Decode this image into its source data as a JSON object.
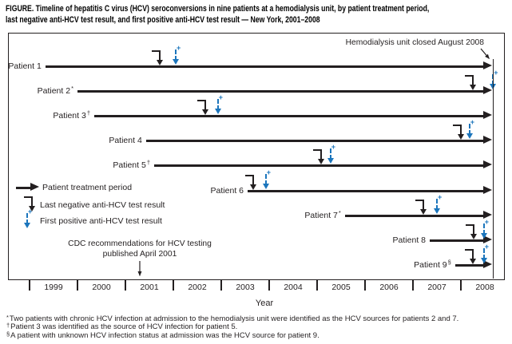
{
  "figure": {
    "title_line1": "FIGURE. Timeline of hepatitis C virus (HCV) seroconversions in nine patients at a hemodialysis unit, by patient treatment period,",
    "title_line2": "last negative anti-HCV test result, and first positive anti-HCV test result — New York, 2001–2008"
  },
  "colors": {
    "ink": "#231f20",
    "positive_blue": "#1b75bc"
  },
  "icons": {
    "plus": "+"
  },
  "legend": {
    "treatment": "Patient treatment period",
    "last_negative": "Last negative anti-HCV test result",
    "first_positive": "First positive anti-HCV test result"
  },
  "annotations": {
    "closure": "Hemodialysis unit closed August 2008",
    "cdc_line1": "CDC recommendations for HCV testing",
    "cdc_line2": "published April 2001"
  },
  "axis": {
    "label": "Year"
  },
  "footnotes": [
    {
      "symbol": "*",
      "text": "Two patients with chronic HCV infection at admission to the hemodialysis unit were identified as the HCV sources for patients 2 and 7."
    },
    {
      "symbol": "†",
      "text": "Patient 3 was identified as the source of HCV infection for patient 5."
    },
    {
      "symbol": "§",
      "text": "A patient with unknown HCV infection status at admission was the HCV source for patient 9."
    }
  ],
  "chart_data": {
    "type": "timeline",
    "title": "Timeline of HCV seroconversions in nine patients at a hemodialysis unit — New York, 2001–2008",
    "xlabel": "Year",
    "axis_years": [
      "1999",
      "2000",
      "2001",
      "2002",
      "2003",
      "2004",
      "2005",
      "2006",
      "2007",
      "2008"
    ],
    "x_domain": [
      1998.55,
      2008.93
    ],
    "unit_closed": {
      "label": "Hemodialysis unit closed August 2008",
      "year": 2008.63
    },
    "cdc_recommendation": {
      "label": "CDC recommendations for HCV testing published April 2001",
      "year": 2001.3
    },
    "patients": [
      {
        "label": "Patient 1",
        "sup": "",
        "treatment_start": 1999.33,
        "treatment_end": 2008.63,
        "last_negative": 2001.72,
        "first_positive": 2002.05
      },
      {
        "label": "Patient 2",
        "sup": "*",
        "treatment_start": 2000.0,
        "treatment_end": 2008.63,
        "last_negative": 2008.25,
        "first_positive": 2008.67
      },
      {
        "label": "Patient 3",
        "sup": "†",
        "treatment_start": 2000.35,
        "treatment_end": 2008.63,
        "last_negative": 2002.67,
        "first_positive": 2002.93
      },
      {
        "label": "Patient 4",
        "sup": "",
        "treatment_start": 2001.43,
        "treatment_end": 2008.63,
        "last_negative": 2008.0,
        "first_positive": 2008.18
      },
      {
        "label": "Patient 5",
        "sup": "†",
        "treatment_start": 2001.6,
        "treatment_end": 2008.63,
        "last_negative": 2005.08,
        "first_positive": 2005.28
      },
      {
        "label": "Patient 6",
        "sup": "",
        "treatment_start": 2003.55,
        "treatment_end": 2008.63,
        "last_negative": 2003.67,
        "first_positive": 2003.93
      },
      {
        "label": "Patient 7",
        "sup": "*",
        "treatment_start": 2005.58,
        "treatment_end": 2008.63,
        "last_negative": 2007.22,
        "first_positive": 2007.5
      },
      {
        "label": "Patient 8",
        "sup": "",
        "treatment_start": 2007.35,
        "treatment_end": 2008.63,
        "last_negative": 2008.27,
        "first_positive": 2008.48
      },
      {
        "label": "Patient 9",
        "sup": "§",
        "treatment_start": 2007.88,
        "treatment_end": 2008.63,
        "last_negative": 2008.25,
        "first_positive": 2008.48
      }
    ]
  }
}
